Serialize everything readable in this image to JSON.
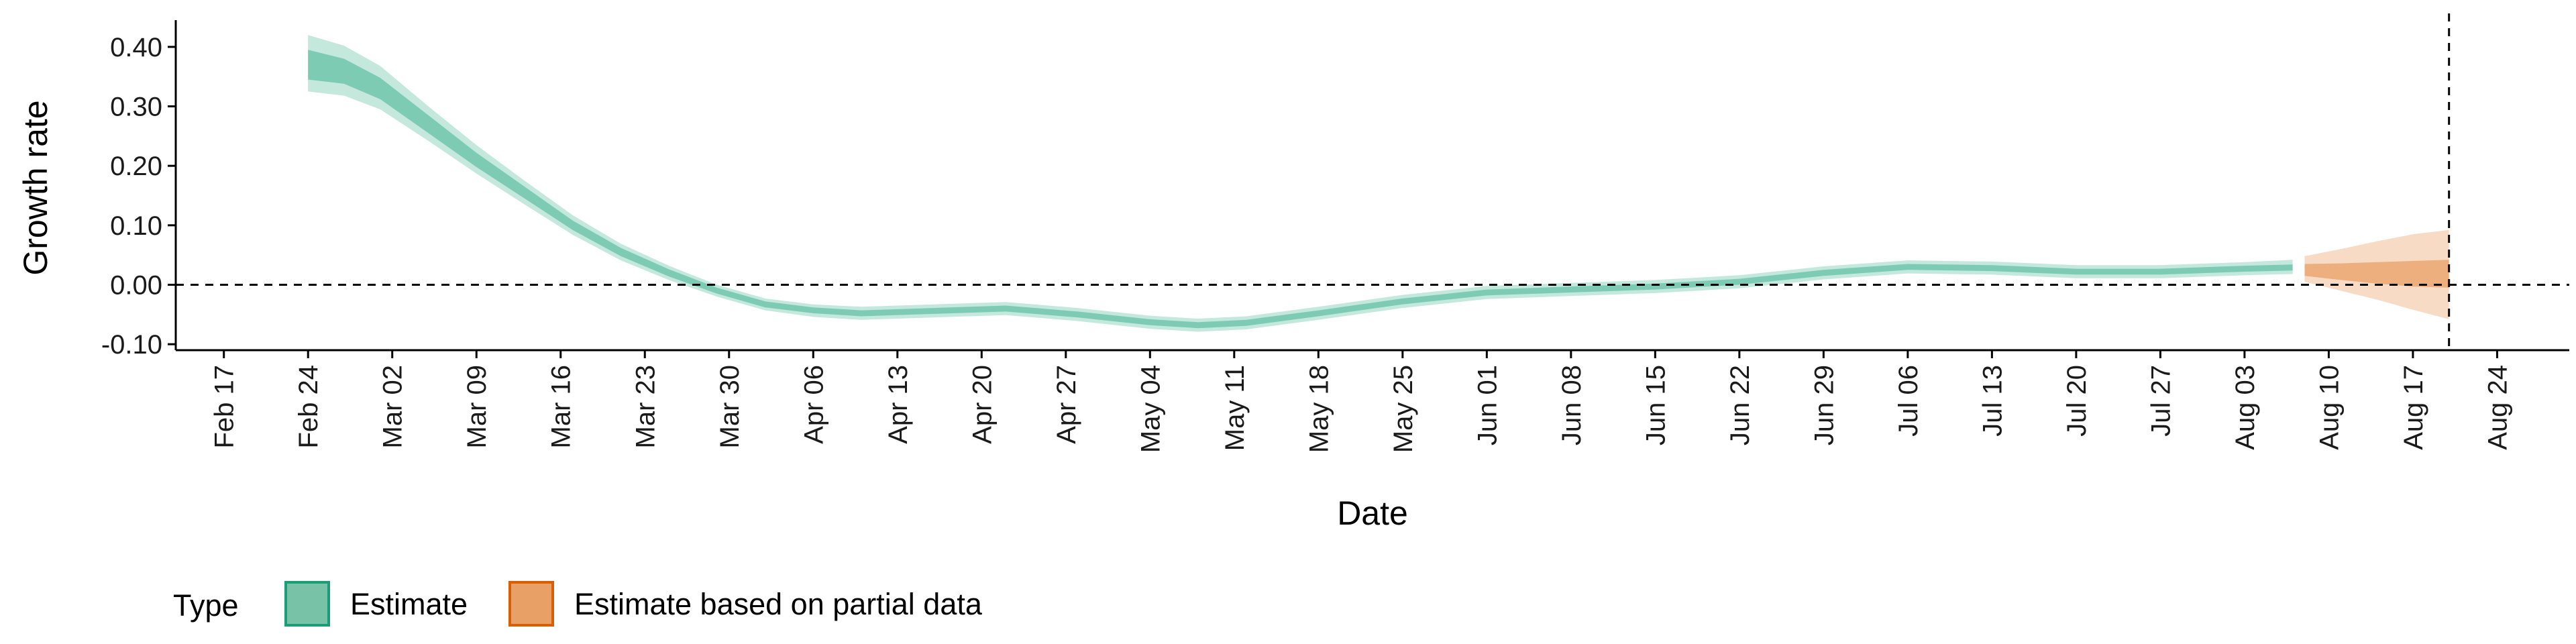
{
  "chart_data": {
    "type": "area",
    "xlabel": "Date",
    "ylabel": "Growth rate",
    "x_tick_labels": [
      "Feb 17",
      "Feb 24",
      "Mar 02",
      "Mar 09",
      "Mar 16",
      "Mar 23",
      "Mar 30",
      "Apr 06",
      "Apr 13",
      "Apr 20",
      "Apr 27",
      "May 04",
      "May 11",
      "May 18",
      "May 25",
      "Jun 01",
      "Jun 08",
      "Jun 15",
      "Jun 22",
      "Jun 29",
      "Jul 06",
      "Jul 13",
      "Jul 20",
      "Jul 27",
      "Aug 03",
      "Aug 10",
      "Aug 17",
      "Aug 24"
    ],
    "y_tick_labels": [
      "-0.10",
      "0.00",
      "0.10",
      "0.20",
      "0.30",
      "0.40"
    ],
    "y_ticks": [
      -0.1,
      0.0,
      0.1,
      0.2,
      0.3,
      0.4
    ],
    "ylim": [
      -0.11,
      0.445
    ],
    "xlim": [
      "2020-02-13",
      "2020-08-30"
    ],
    "reference_line_y": 0,
    "reference_line_x": "2020-08-20",
    "legend": {
      "title": "Type",
      "position": "bottom-left",
      "entries": [
        {
          "label": "Estimate",
          "fill": "#78c3a8",
          "stroke": "#1b9e77"
        },
        {
          "label": "Estimate based on partial data",
          "fill": "#e9a066",
          "stroke": "#d95f02"
        }
      ]
    },
    "series": [
      {
        "name": "Estimate",
        "color": "#66c2a5",
        "points": [
          {
            "date": "2020-02-24",
            "median": 0.37,
            "inner": [
              0.345,
              0.395
            ],
            "outer": [
              0.325,
              0.42
            ]
          },
          {
            "date": "2020-02-27",
            "median": 0.36,
            "inner": [
              0.338,
              0.38
            ],
            "outer": [
              0.318,
              0.402
            ]
          },
          {
            "date": "2020-03-01",
            "median": 0.33,
            "inner": [
              0.312,
              0.348
            ],
            "outer": [
              0.295,
              0.368
            ]
          },
          {
            "date": "2020-03-05",
            "median": 0.27,
            "inner": [
              0.255,
              0.285
            ],
            "outer": [
              0.242,
              0.3
            ]
          },
          {
            "date": "2020-03-09",
            "median": 0.21,
            "inner": [
              0.198,
              0.222
            ],
            "outer": [
              0.187,
              0.235
            ]
          },
          {
            "date": "2020-03-13",
            "median": 0.155,
            "inner": [
              0.145,
              0.165
            ],
            "outer": [
              0.135,
              0.175
            ]
          },
          {
            "date": "2020-03-17",
            "median": 0.1,
            "inner": [
              0.092,
              0.108
            ],
            "outer": [
              0.084,
              0.117
            ]
          },
          {
            "date": "2020-03-21",
            "median": 0.055,
            "inner": [
              0.048,
              0.062
            ],
            "outer": [
              0.041,
              0.069
            ]
          },
          {
            "date": "2020-03-25",
            "median": 0.02,
            "inner": [
              0.014,
              0.026
            ],
            "outer": [
              0.008,
              0.032
            ]
          },
          {
            "date": "2020-03-29",
            "median": -0.01,
            "inner": [
              -0.015,
              -0.005
            ],
            "outer": [
              -0.02,
              0.0
            ]
          },
          {
            "date": "2020-04-02",
            "median": -0.033,
            "inner": [
              -0.038,
              -0.028
            ],
            "outer": [
              -0.043,
              -0.023
            ]
          },
          {
            "date": "2020-04-06",
            "median": -0.043,
            "inner": [
              -0.048,
              -0.038
            ],
            "outer": [
              -0.054,
              -0.033
            ]
          },
          {
            "date": "2020-04-10",
            "median": -0.048,
            "inner": [
              -0.053,
              -0.043
            ],
            "outer": [
              -0.059,
              -0.037
            ]
          },
          {
            "date": "2020-04-16",
            "median": -0.044,
            "inner": [
              -0.049,
              -0.039
            ],
            "outer": [
              -0.055,
              -0.033
            ]
          },
          {
            "date": "2020-04-22",
            "median": -0.04,
            "inner": [
              -0.045,
              -0.035
            ],
            "outer": [
              -0.051,
              -0.029
            ]
          },
          {
            "date": "2020-04-28",
            "median": -0.05,
            "inner": [
              -0.055,
              -0.045
            ],
            "outer": [
              -0.061,
              -0.039
            ]
          },
          {
            "date": "2020-05-04",
            "median": -0.063,
            "inner": [
              -0.068,
              -0.058
            ],
            "outer": [
              -0.074,
              -0.052
            ]
          },
          {
            "date": "2020-05-08",
            "median": -0.068,
            "inner": [
              -0.073,
              -0.063
            ],
            "outer": [
              -0.079,
              -0.057
            ]
          },
          {
            "date": "2020-05-12",
            "median": -0.064,
            "inner": [
              -0.069,
              -0.059
            ],
            "outer": [
              -0.075,
              -0.053
            ]
          },
          {
            "date": "2020-05-18",
            "median": -0.048,
            "inner": [
              -0.053,
              -0.043
            ],
            "outer": [
              -0.059,
              -0.037
            ]
          },
          {
            "date": "2020-05-25",
            "median": -0.028,
            "inner": [
              -0.033,
              -0.023
            ],
            "outer": [
              -0.039,
              -0.017
            ]
          },
          {
            "date": "2020-06-01",
            "median": -0.013,
            "inner": [
              -0.018,
              -0.008
            ],
            "outer": [
              -0.024,
              -0.002
            ]
          },
          {
            "date": "2020-06-08",
            "median": -0.008,
            "inner": [
              -0.013,
              -0.003
            ],
            "outer": [
              -0.019,
              0.003
            ]
          },
          {
            "date": "2020-06-15",
            "median": -0.003,
            "inner": [
              -0.008,
              0.002
            ],
            "outer": [
              -0.014,
              0.008
            ]
          },
          {
            "date": "2020-06-22",
            "median": 0.005,
            "inner": [
              0.0,
              0.01
            ],
            "outer": [
              -0.006,
              0.016
            ]
          },
          {
            "date": "2020-06-29",
            "median": 0.02,
            "inner": [
              0.015,
              0.025
            ],
            "outer": [
              0.009,
              0.031
            ]
          },
          {
            "date": "2020-07-06",
            "median": 0.03,
            "inner": [
              0.025,
              0.035
            ],
            "outer": [
              0.019,
              0.041
            ]
          },
          {
            "date": "2020-07-13",
            "median": 0.028,
            "inner": [
              0.023,
              0.033
            ],
            "outer": [
              0.017,
              0.039
            ]
          },
          {
            "date": "2020-07-20",
            "median": 0.022,
            "inner": [
              0.017,
              0.027
            ],
            "outer": [
              0.011,
              0.033
            ]
          },
          {
            "date": "2020-07-27",
            "median": 0.022,
            "inner": [
              0.017,
              0.027
            ],
            "outer": [
              0.011,
              0.033
            ]
          },
          {
            "date": "2020-08-03",
            "median": 0.027,
            "inner": [
              0.022,
              0.032
            ],
            "outer": [
              0.016,
              0.038
            ]
          },
          {
            "date": "2020-08-07",
            "median": 0.029,
            "inner": [
              0.024,
              0.034
            ],
            "outer": [
              0.018,
              0.042
            ]
          }
        ]
      },
      {
        "name": "Estimate based on partial data",
        "color": "#e9a066",
        "points": [
          {
            "date": "2020-08-08",
            "median": 0.025,
            "inner": [
              0.015,
              0.035
            ],
            "outer": [
              0.005,
              0.048
            ]
          },
          {
            "date": "2020-08-11",
            "median": 0.022,
            "inner": [
              0.008,
              0.036
            ],
            "outer": [
              -0.01,
              0.06
            ]
          },
          {
            "date": "2020-08-14",
            "median": 0.02,
            "inner": [
              0.002,
              0.038
            ],
            "outer": [
              -0.025,
              0.073
            ]
          },
          {
            "date": "2020-08-17",
            "median": 0.022,
            "inner": [
              -0.003,
              0.04
            ],
            "outer": [
              -0.042,
              0.085
            ]
          },
          {
            "date": "2020-08-20",
            "median": 0.022,
            "inner": [
              -0.005,
              0.042
            ],
            "outer": [
              -0.058,
              0.092
            ]
          }
        ]
      }
    ]
  }
}
